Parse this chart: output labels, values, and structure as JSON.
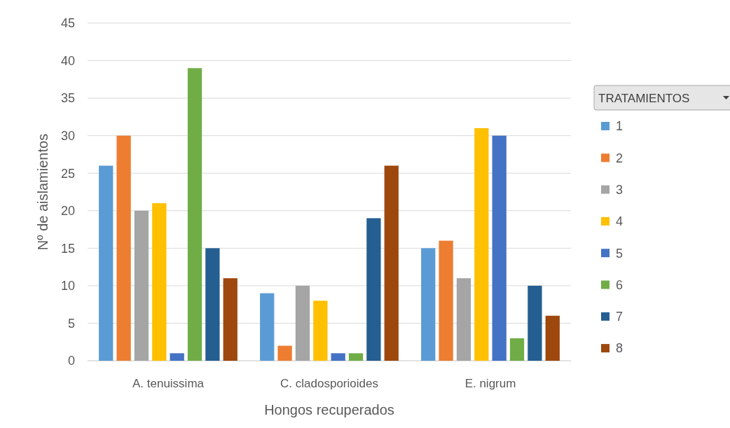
{
  "chart_data": {
    "type": "bar",
    "xlabel": "Hongos recuperados",
    "ylabel": "Nº de aislamientos",
    "legend_title": "TRATAMIENTOS",
    "legend": "right",
    "categories": [
      "A. tenuissima",
      "C. cladosporioides",
      "E. nigrum"
    ],
    "ylim": [
      0,
      45
    ],
    "yticks": [
      0,
      5,
      10,
      15,
      20,
      25,
      30,
      35,
      40,
      45
    ],
    "grid": "y",
    "series": [
      {
        "name": "1",
        "color": "#5b9bd5",
        "values": [
          26,
          9,
          15
        ]
      },
      {
        "name": "2",
        "color": "#ed7d31",
        "values": [
          30,
          2,
          16
        ]
      },
      {
        "name": "3",
        "color": "#a5a5a5",
        "values": [
          20,
          10,
          11
        ]
      },
      {
        "name": "4",
        "color": "#ffc000",
        "values": [
          21,
          8,
          31
        ]
      },
      {
        "name": "5",
        "color": "#4472c4",
        "values": [
          1,
          1,
          30
        ]
      },
      {
        "name": "6",
        "color": "#70ad47",
        "values": [
          39,
          1,
          3
        ]
      },
      {
        "name": "7",
        "color": "#255e91",
        "values": [
          15,
          19,
          10
        ]
      },
      {
        "name": "8",
        "color": "#9e480e",
        "values": [
          11,
          26,
          6
        ]
      }
    ]
  }
}
